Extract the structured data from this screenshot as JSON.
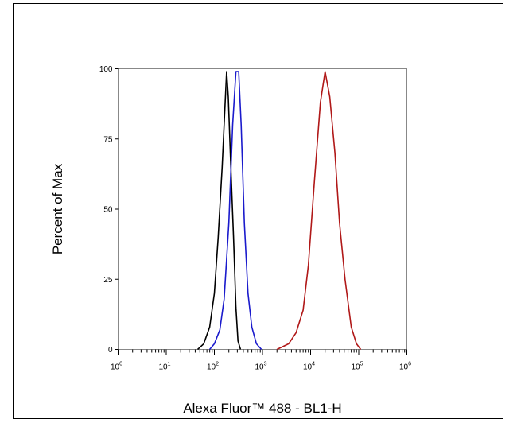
{
  "chart_data": {
    "type": "line",
    "title": "",
    "xlabel": "Alexa Fluor™ 488 - BL1-H",
    "ylabel": "Percent of Max",
    "x_scale": "log",
    "xlim": [
      1,
      1000000
    ],
    "ylim": [
      0,
      100
    ],
    "x_ticks": [
      {
        "value": 1,
        "base": "10",
        "exp": "0"
      },
      {
        "value": 10,
        "base": "10",
        "exp": "1"
      },
      {
        "value": 100,
        "base": "10",
        "exp": "2"
      },
      {
        "value": 1000,
        "base": "10",
        "exp": "3"
      },
      {
        "value": 10000,
        "base": "10",
        "exp": "4"
      },
      {
        "value": 100000,
        "base": "10",
        "exp": "5"
      },
      {
        "value": 1000000,
        "base": "10",
        "exp": "6"
      }
    ],
    "y_ticks": [
      0,
      25,
      50,
      75,
      100
    ],
    "grid": false,
    "legend": "none",
    "series": [
      {
        "color": "#000000",
        "points": [
          [
            45,
            0
          ],
          [
            60,
            2
          ],
          [
            80,
            8
          ],
          [
            100,
            20
          ],
          [
            120,
            40
          ],
          [
            145,
            65
          ],
          [
            170,
            90
          ],
          [
            180,
            99
          ],
          [
            195,
            90
          ],
          [
            220,
            65
          ],
          [
            250,
            40
          ],
          [
            280,
            15
          ],
          [
            310,
            3
          ],
          [
            350,
            0
          ]
        ]
      },
      {
        "color": "#1a1acc",
        "points": [
          [
            80,
            0
          ],
          [
            100,
            2
          ],
          [
            130,
            7
          ],
          [
            160,
            18
          ],
          [
            200,
            45
          ],
          [
            240,
            80
          ],
          [
            280,
            99
          ],
          [
            320,
            99
          ],
          [
            360,
            80
          ],
          [
            420,
            45
          ],
          [
            500,
            20
          ],
          [
            600,
            8
          ],
          [
            750,
            2
          ],
          [
            950,
            0
          ]
        ]
      },
      {
        "color": "#b01818",
        "points": [
          [
            2000,
            0
          ],
          [
            3500,
            2
          ],
          [
            5000,
            6
          ],
          [
            7000,
            14
          ],
          [
            9000,
            30
          ],
          [
            12000,
            60
          ],
          [
            16000,
            88
          ],
          [
            20000,
            99
          ],
          [
            25000,
            90
          ],
          [
            32000,
            70
          ],
          [
            40000,
            45
          ],
          [
            52000,
            25
          ],
          [
            70000,
            8
          ],
          [
            90000,
            2
          ],
          [
            110000,
            0
          ]
        ]
      }
    ]
  }
}
